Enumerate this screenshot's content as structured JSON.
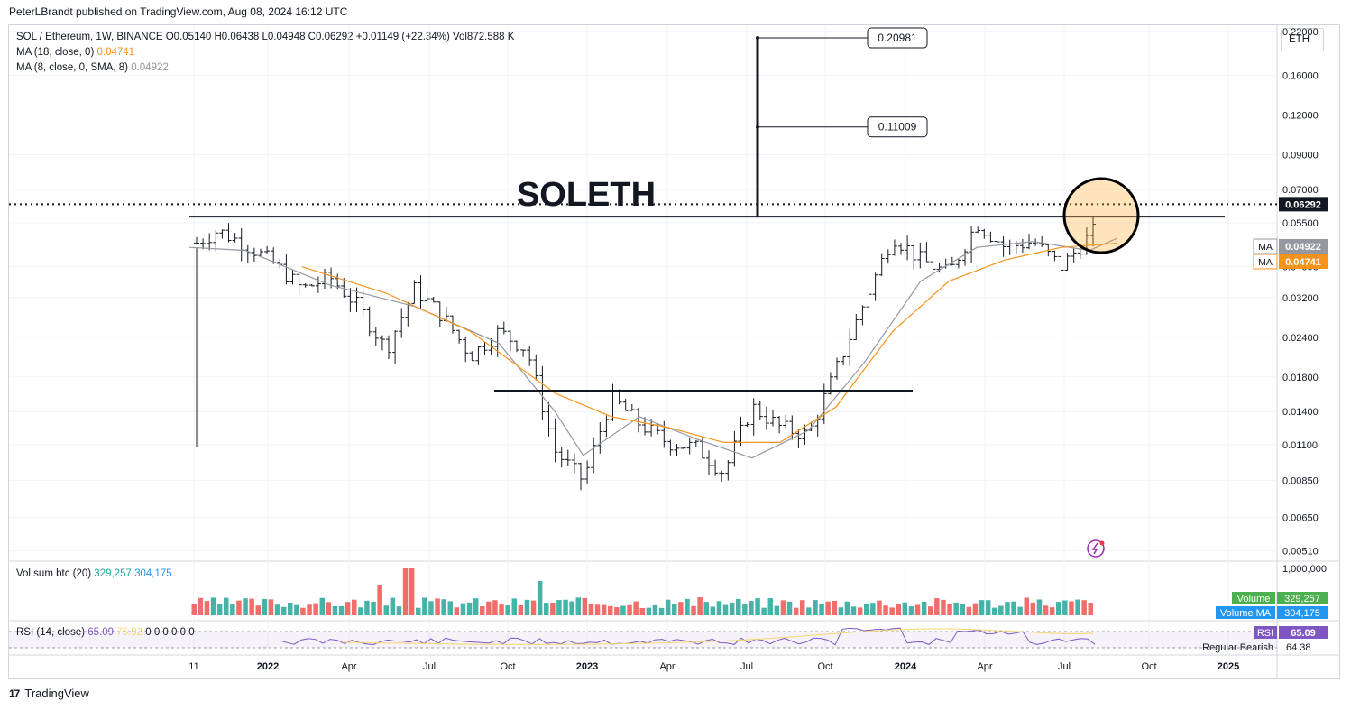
{
  "header": {
    "published": "PeterLBrandt published on TradingView.com, Aug 08, 2024 16:12 UTC"
  },
  "legend": {
    "symbol_line": "SOL / Ethereum, 1W, BINANCE  O0.05140  H0.06438  L0.04948  C0.06292  +0.01149 (+22.34%)  Vol872.588 K",
    "ma18_label": "MA (18, close, 0)",
    "ma18_value": "0.04741",
    "ma8_label": "MA (8, close, 0, SMA, 8)",
    "ma8_value": "0.04922"
  },
  "currency_button": "ETH",
  "annotations": {
    "title": "SOLETH",
    "target_high": "0.20981",
    "target_low": "0.11009"
  },
  "price_scale": {
    "ticks": [
      "0.22000",
      "0.16000",
      "0.12000",
      "0.09000",
      "0.07000",
      "0.05500",
      "0.04000",
      "0.03200",
      "0.02400",
      "0.01800",
      "0.01400",
      "0.01100",
      "0.00850",
      "0.00650",
      "0.00510"
    ],
    "last_price": "0.06292",
    "ma8_tag": "MA",
    "ma8_tag_value": "0.04922",
    "ma18_tag": "MA",
    "ma18_tag_value": "0.04741",
    "last_price_color": "#131722",
    "ma8_color": "#9598a1",
    "ma18_color": "#f7931a"
  },
  "volume_pane": {
    "label": "Vol sum btc (20)",
    "value1": "329,257",
    "value2": "304,175",
    "scale_top": "1,000,000",
    "tag_volume": "Volume",
    "tag_volume_value": "329,257",
    "tag_volume_ma": "Volume MA",
    "tag_volume_ma_value": "304,175",
    "up_color": "#26a69a",
    "down_color": "#ef5350"
  },
  "rsi_pane": {
    "label": "RSI (14, close)",
    "value": "65.09",
    "value2": "75.92",
    "zeros": "0  0  0  0  0  0",
    "tag_rsi": "RSI",
    "tag_rsi_value": "65.09",
    "tag_bearish": "Regular Bearish",
    "tag_bearish_value": "64.38"
  },
  "time_axis": [
    "11",
    "2022",
    "Apr",
    "Jul",
    "Oct",
    "2023",
    "Apr",
    "Jul",
    "Oct",
    "2024",
    "Apr",
    "Jul",
    "Oct",
    "2025"
  ],
  "footer": {
    "brand": "TradingView",
    "logo": "17"
  },
  "chart_data": {
    "type": "line",
    "title": "SOLETH",
    "symbol": "SOL / Ethereum, 1W, BINANCE",
    "scale": "log",
    "ylim": [
      0.0048,
      0.23
    ],
    "x_label_dates": [
      "2021-11",
      "2022",
      "Apr",
      "Jul",
      "Oct",
      "2023",
      "Apr",
      "Jul",
      "Oct",
      "2024",
      "Apr",
      "Jul",
      "Oct",
      "2025"
    ],
    "series": [
      {
        "name": "SOL / Ethereum",
        "x": [
          "2021-11",
          "2021-12",
          "2022-01",
          "2022-02",
          "2022-03",
          "2022-04",
          "2022-05",
          "2022-06",
          "2022-07",
          "2022-08",
          "2022-09",
          "2022-10",
          "2022-11",
          "2022-12",
          "2023-01",
          "2023-02",
          "2023-03",
          "2023-04",
          "2023-05",
          "2023-06",
          "2023-07",
          "2023-08",
          "2023-09",
          "2023-10",
          "2023-11",
          "2023-12",
          "2024-01",
          "2024-02",
          "2024-03",
          "2024-04",
          "2024-05",
          "2024-06",
          "2024-07",
          "2024-08"
        ],
        "values": [
          0.046,
          0.052,
          0.047,
          0.041,
          0.034,
          0.037,
          0.03,
          0.022,
          0.034,
          0.028,
          0.021,
          0.025,
          0.022,
          0.0105,
          0.0085,
          0.0155,
          0.0128,
          0.0112,
          0.0108,
          0.009,
          0.0145,
          0.0125,
          0.0118,
          0.019,
          0.031,
          0.05,
          0.042,
          0.038,
          0.055,
          0.046,
          0.048,
          0.04,
          0.05,
          0.0629
        ]
      },
      {
        "name": "MA (8, close, 0, SMA, 8)",
        "x": [
          "2021-11",
          "2022-01",
          "2022-04",
          "2022-07",
          "2022-10",
          "2022-12",
          "2023-01",
          "2023-03",
          "2023-05",
          "2023-07",
          "2023-09",
          "2023-11",
          "2024-01",
          "2024-03",
          "2024-05",
          "2024-07",
          "2024-08"
        ],
        "values": [
          0.046,
          0.045,
          0.035,
          0.03,
          0.023,
          0.014,
          0.0102,
          0.0135,
          0.0115,
          0.01,
          0.0122,
          0.02,
          0.036,
          0.046,
          0.048,
          0.045,
          0.0492
        ]
      },
      {
        "name": "MA (18, close, 0)",
        "x": [
          "2022-03",
          "2022-06",
          "2022-09",
          "2022-12",
          "2023-02",
          "2023-04",
          "2023-06",
          "2023-08",
          "2023-10",
          "2023-12",
          "2024-02",
          "2024-04",
          "2024-06",
          "2024-08"
        ],
        "values": [
          0.04,
          0.033,
          0.025,
          0.016,
          0.0135,
          0.0125,
          0.0112,
          0.0112,
          0.0145,
          0.025,
          0.036,
          0.042,
          0.046,
          0.0474
        ]
      }
    ],
    "horizontal_levels": [
      {
        "value": 0.0575,
        "label": ""
      },
      {
        "value": 0.0163,
        "label": ""
      },
      {
        "value": 0.0629,
        "label": "dotted"
      }
    ]
  }
}
